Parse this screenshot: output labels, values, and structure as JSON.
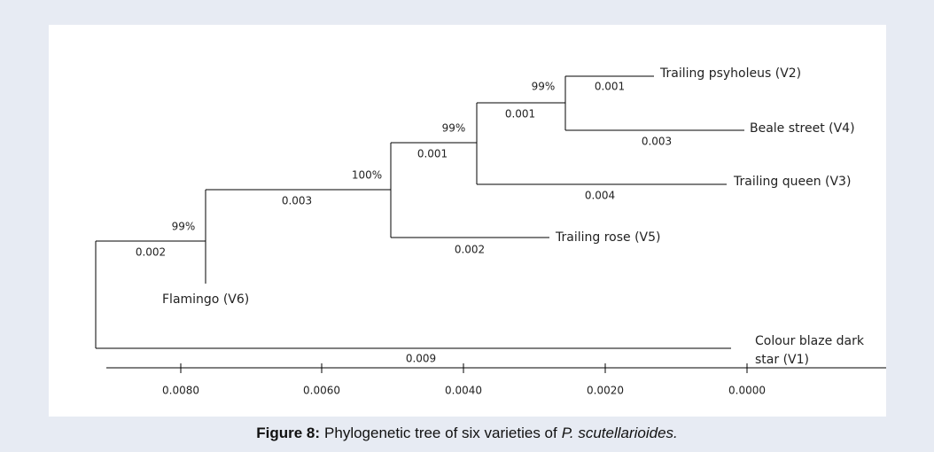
{
  "tree": {
    "leaves": [
      "Trailing psyholeus (V2)",
      "Beale street (V4)",
      "Trailing queen (V3)",
      "Trailing rose (V5)",
      "Flamingo (V6)",
      "Colour blaze dark",
      "star (V1)"
    ],
    "branch_lengths": [
      "0.001",
      "0.003",
      "0.001",
      "0.004",
      "0.001",
      "0.002",
      "0.003",
      "0.002",
      "0.009"
    ],
    "supports": [
      "99%",
      "99%",
      "100%",
      "99%"
    ],
    "axis_ticks": [
      "0.0080",
      "0.0060",
      "0.0040",
      "0.0020",
      "0.0000"
    ]
  },
  "caption": {
    "label": "Figure 8:",
    "text": "Phylogenetic tree of six varieties of",
    "species": "P. scutellarioides."
  }
}
